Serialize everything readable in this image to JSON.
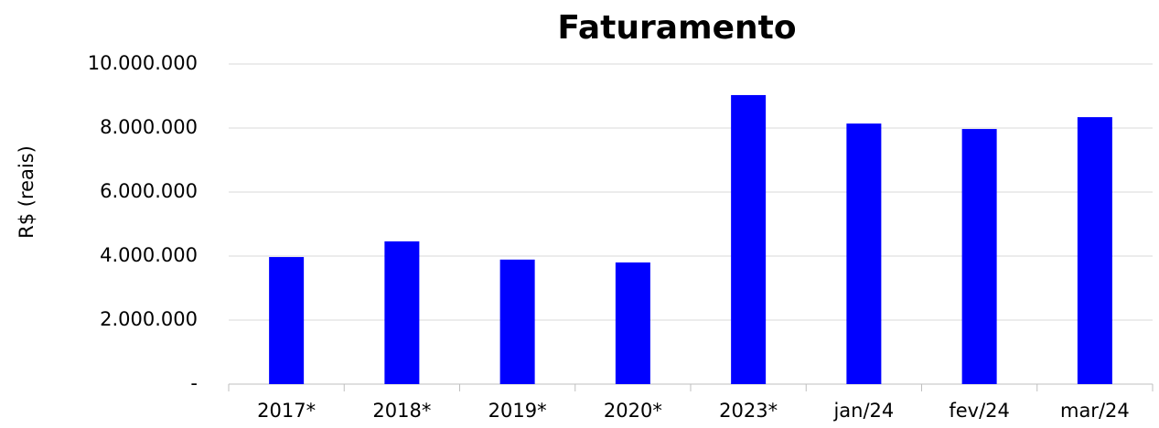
{
  "chart_data": {
    "type": "bar",
    "title": "Faturamento",
    "y_label": "R$ (reais)",
    "categories": [
      "2017*",
      "2018*",
      "2019*",
      "2020*",
      "2023*",
      "jan/24",
      "fev/24",
      "mar/24"
    ],
    "values": [
      3970000,
      4460000,
      3890000,
      3800000,
      9030000,
      8140000,
      7970000,
      8340000
    ],
    "color": "#0000ff",
    "ylim": [
      0,
      10000000
    ],
    "yticks": [
      {
        "value": 0,
        "label": "-"
      },
      {
        "value": 2000000,
        "label": "2.000.000"
      },
      {
        "value": 4000000,
        "label": "4.000.000"
      },
      {
        "value": 6000000,
        "label": "6.000.000"
      },
      {
        "value": 8000000,
        "label": "8.000.000"
      },
      {
        "value": 10000000,
        "label": "10.000.000"
      }
    ],
    "grid": true
  }
}
